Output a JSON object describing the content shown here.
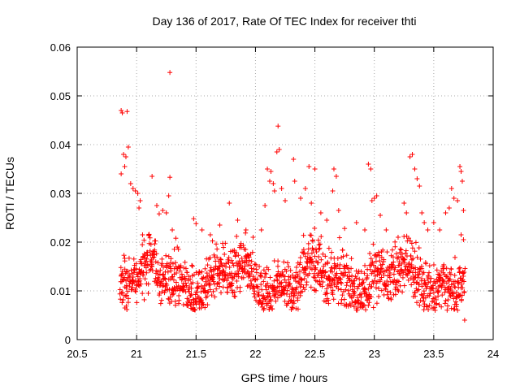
{
  "chart_data": {
    "type": "scatter",
    "title": "Day 136 of 2017, Rate Of TEC Index for receiver thti",
    "xlabel": "GPS time / hours",
    "ylabel": "ROTI / TECUs",
    "xlim": [
      20.5,
      24
    ],
    "ylim": [
      0,
      0.06
    ],
    "xticks": [
      "20.5",
      "21",
      "21.5",
      "22",
      "22.5",
      "23",
      "23.5",
      "24"
    ],
    "yticks": [
      "0",
      "0.01",
      "0.02",
      "0.03",
      "0.04",
      "0.05",
      "0.06"
    ],
    "grid": true,
    "marker": "+",
    "color": "#ff0000",
    "time_range": [
      20.86,
      23.76
    ],
    "baseline_band": [
      0.006,
      0.024
    ],
    "series": [
      {
        "name": "ROTI",
        "points": [
          [
            20.87,
            0.047
          ],
          [
            20.88,
            0.0465
          ],
          [
            20.92,
            0.0468
          ],
          [
            20.87,
            0.034
          ],
          [
            20.9,
            0.0355
          ],
          [
            20.89,
            0.038
          ],
          [
            20.91,
            0.0375
          ],
          [
            20.93,
            0.0395
          ],
          [
            20.95,
            0.032
          ],
          [
            20.97,
            0.031
          ],
          [
            20.99,
            0.0305
          ],
          [
            21.01,
            0.03
          ],
          [
            21.03,
            0.0285
          ],
          [
            21.02,
            0.027
          ],
          [
            21.05,
            0.0215
          ],
          [
            21.13,
            0.0335
          ],
          [
            21.17,
            0.0275
          ],
          [
            21.19,
            0.0258
          ],
          [
            21.22,
            0.0265
          ],
          [
            21.25,
            0.026
          ],
          [
            21.27,
            0.0295
          ],
          [
            21.28,
            0.0548
          ],
          [
            21.28,
            0.0333
          ],
          [
            21.3,
            0.0225
          ],
          [
            21.33,
            0.0208
          ],
          [
            21.48,
            0.0248
          ],
          [
            21.5,
            0.0238
          ],
          [
            21.55,
            0.0225
          ],
          [
            21.62,
            0.0215
          ],
          [
            21.7,
            0.0235
          ],
          [
            21.78,
            0.028
          ],
          [
            21.85,
            0.0245
          ],
          [
            21.92,
            0.0225
          ],
          [
            21.98,
            0.021
          ],
          [
            22.05,
            0.0225
          ],
          [
            22.08,
            0.0275
          ],
          [
            22.1,
            0.035
          ],
          [
            22.12,
            0.0325
          ],
          [
            22.13,
            0.0345
          ],
          [
            22.15,
            0.032
          ],
          [
            22.16,
            0.0305
          ],
          [
            22.18,
            0.0385
          ],
          [
            22.19,
            0.0438
          ],
          [
            22.2,
            0.039
          ],
          [
            22.22,
            0.031
          ],
          [
            22.25,
            0.0285
          ],
          [
            22.32,
            0.037
          ],
          [
            22.33,
            0.0325
          ],
          [
            22.38,
            0.029
          ],
          [
            22.42,
            0.031
          ],
          [
            22.45,
            0.0355
          ],
          [
            22.47,
            0.028
          ],
          [
            22.5,
            0.035
          ],
          [
            22.55,
            0.026
          ],
          [
            22.6,
            0.0245
          ],
          [
            22.65,
            0.0305
          ],
          [
            22.66,
            0.035
          ],
          [
            22.68,
            0.0335
          ],
          [
            22.7,
            0.0265
          ],
          [
            22.75,
            0.0228
          ],
          [
            22.85,
            0.024
          ],
          [
            22.92,
            0.0225
          ],
          [
            22.95,
            0.036
          ],
          [
            22.97,
            0.035
          ],
          [
            22.98,
            0.0285
          ],
          [
            23.0,
            0.029
          ],
          [
            23.02,
            0.0295
          ],
          [
            23.05,
            0.0255
          ],
          [
            23.1,
            0.0225
          ],
          [
            23.2,
            0.021
          ],
          [
            23.25,
            0.028
          ],
          [
            23.27,
            0.026
          ],
          [
            23.3,
            0.0375
          ],
          [
            23.32,
            0.038
          ],
          [
            23.34,
            0.035
          ],
          [
            23.36,
            0.033
          ],
          [
            23.38,
            0.0315
          ],
          [
            23.4,
            0.026
          ],
          [
            23.42,
            0.024
          ],
          [
            23.45,
            0.0225
          ],
          [
            23.5,
            0.024
          ],
          [
            23.55,
            0.0225
          ],
          [
            23.6,
            0.026
          ],
          [
            23.63,
            0.027
          ],
          [
            23.65,
            0.031
          ],
          [
            23.67,
            0.029
          ],
          [
            23.7,
            0.0285
          ],
          [
            23.72,
            0.0355
          ],
          [
            23.73,
            0.0345
          ],
          [
            23.74,
            0.0325
          ],
          [
            23.75,
            0.0265
          ],
          [
            23.76,
            0.004
          ],
          [
            23.73,
            0.0215
          ],
          [
            23.75,
            0.0205
          ]
        ]
      }
    ]
  }
}
